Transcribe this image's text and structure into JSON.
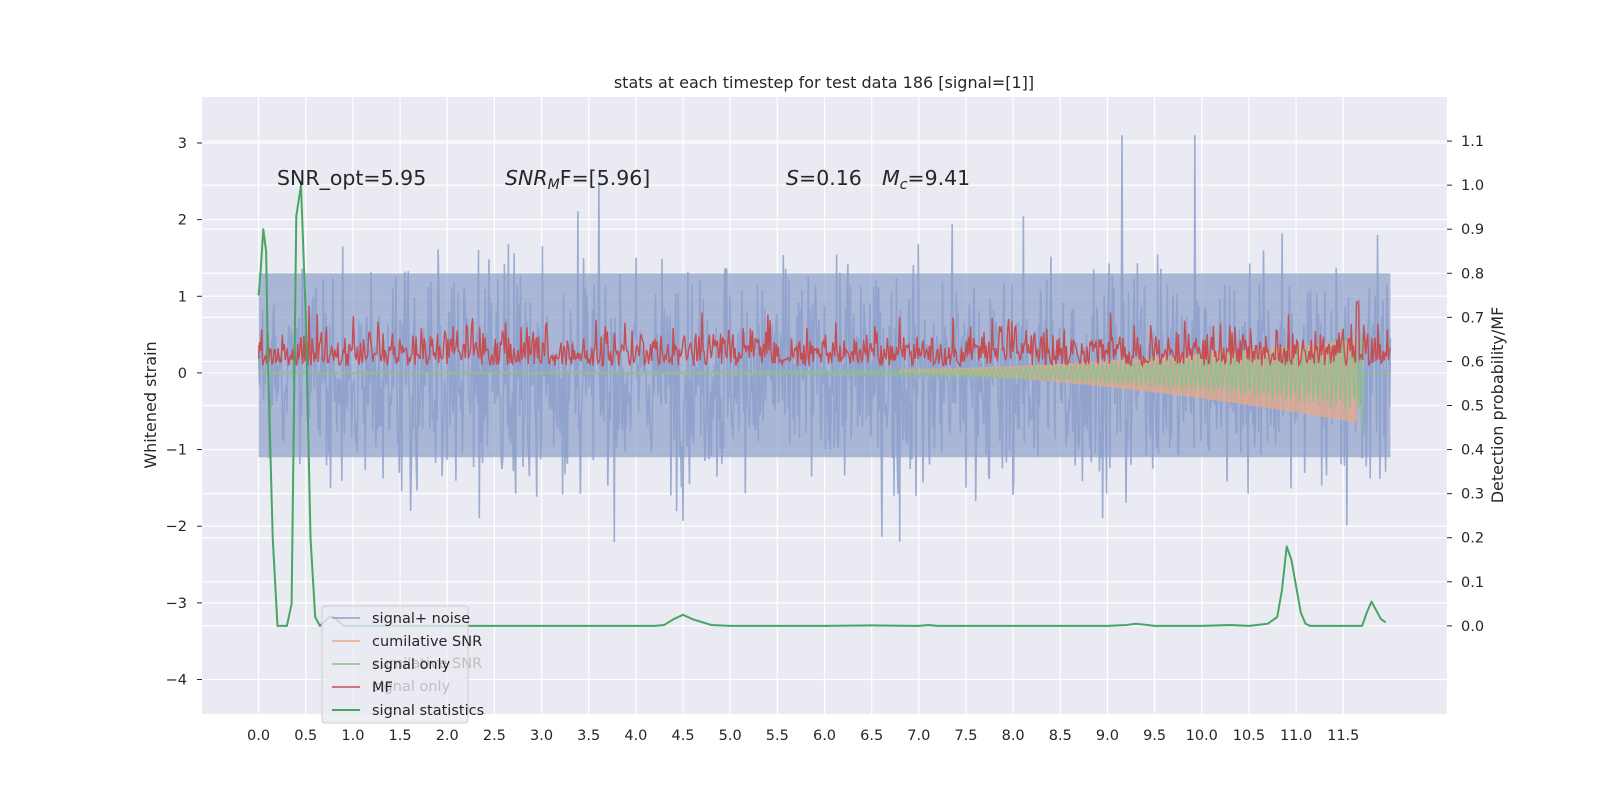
{
  "chart_data": {
    "type": "line",
    "title": "stats at each timestep for test data 186 [signal=[1]]",
    "ylabel": "Whitened strain",
    "ylabel_right": "Detection probability/MF",
    "xlim": [
      -0.6,
      12.6
    ],
    "ylim": [
      -4.45,
      3.6
    ],
    "ylim_right": [
      -0.2,
      1.2
    ],
    "x_ticks": [
      "0.0",
      "0.5",
      "1.0",
      "1.5",
      "2.0",
      "2.5",
      "3.0",
      "3.5",
      "4.0",
      "4.5",
      "5.0",
      "5.5",
      "6.0",
      "6.5",
      "7.0",
      "7.5",
      "8.0",
      "8.5",
      "9.0",
      "9.5",
      "10.0",
      "10.5",
      "11.0",
      "11.5"
    ],
    "y_ticks": [
      "3",
      "2",
      "1",
      "0",
      "−1",
      "−2",
      "−3",
      "−4"
    ],
    "y_right_ticks": [
      "1.1",
      "1.0",
      "0.9",
      "0.8",
      "0.7",
      "0.6",
      "0.5",
      "0.4",
      "0.3",
      "0.2",
      "0.1",
      "0.0"
    ],
    "grid": true,
    "legend_position": "lower-left",
    "annotations": {
      "snr_opt": "SNR_opt=5.95",
      "snr_mf": "SNR",
      "snr_mf_sub": "M",
      "snr_mf_rest": "F=[5.96]",
      "s_var": "S",
      "s_val": "=0.16",
      "mc_var": "M",
      "mc_sub": "c",
      "mc_val": "=9.41"
    },
    "series": [
      {
        "name": "signal+ noise",
        "color": "#8da0cb",
        "axis": "left",
        "note_values": "dense noise, x 0 to 12, y approx ±3"
      },
      {
        "name": "cumilative SNR",
        "color": "#e5a98a",
        "axis": "left"
      },
      {
        "name": "signal only",
        "color": "#8fbf8f",
        "axis": "left"
      },
      {
        "name": "MF",
        "color": "#c44e52",
        "axis": "right"
      },
      {
        "name": "signal statistics",
        "color": "#4aa564",
        "axis": "right"
      }
    ],
    "ghost_legend_labels": [
      "cumilative SNR",
      "signal only"
    ],
    "signal_statistics": {
      "x": [
        0.0,
        0.02,
        0.05,
        0.08,
        0.1,
        0.15,
        0.2,
        0.3,
        0.35,
        0.4,
        0.45,
        0.5,
        0.55,
        0.6,
        0.65,
        0.7,
        0.75,
        0.8,
        0.85,
        0.9,
        1.0,
        1.5,
        2.0,
        2.5,
        3.0,
        3.5,
        4.0,
        4.2,
        4.3,
        4.4,
        4.5,
        4.6,
        4.8,
        5.0,
        5.5,
        6.0,
        6.5,
        7.0,
        7.1,
        7.2,
        7.5,
        8.0,
        8.5,
        9.0,
        9.2,
        9.3,
        9.5,
        10.0,
        10.3,
        10.5,
        10.7,
        10.8,
        10.85,
        10.9,
        10.95,
        11.0,
        11.05,
        11.1,
        11.15,
        11.2,
        11.3,
        11.5,
        11.6,
        11.7,
        11.75,
        11.8,
        11.9,
        11.95
      ],
      "y": [
        0.75,
        0.8,
        0.9,
        0.85,
        0.6,
        0.2,
        0.0,
        0.0,
        0.05,
        0.93,
        1.0,
        0.7,
        0.2,
        0.02,
        0.0,
        0.01,
        0.02,
        0.02,
        0.01,
        0.0,
        0.0,
        0.0,
        0.0,
        0.0,
        0.0,
        0.0,
        0.0,
        0.0,
        0.002,
        0.015,
        0.025,
        0.015,
        0.002,
        0.0,
        0.0,
        0.0,
        0.001,
        0.0,
        0.002,
        0.0,
        0.0,
        0.0,
        0.0,
        0.0,
        0.002,
        0.005,
        0.0,
        0.0,
        0.002,
        0.0,
        0.005,
        0.02,
        0.08,
        0.18,
        0.15,
        0.09,
        0.03,
        0.005,
        0.0,
        0.0,
        0.0,
        0.0,
        0.0,
        0.0,
        0.03,
        0.055,
        0.015,
        0.008
      ]
    },
    "mf": {
      "baseline": 0.6,
      "spread": 0.1,
      "peak_x": 11.65,
      "peak_y": 0.735
    }
  }
}
